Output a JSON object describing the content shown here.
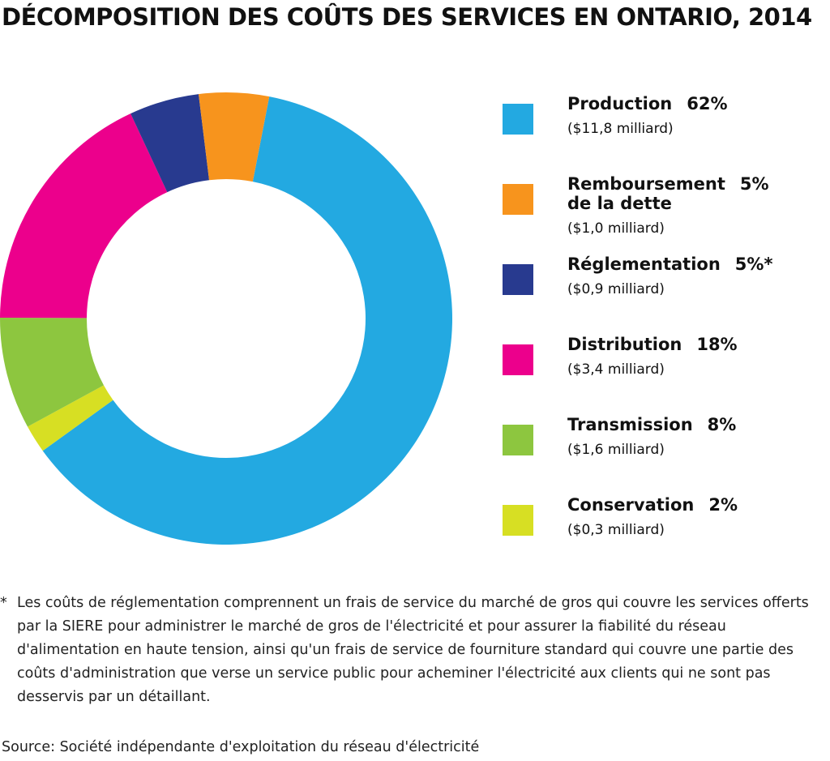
{
  "chart_data": {
    "type": "pie",
    "variant": "donut",
    "title": "DÉCOMPOSITION DES COÛTS DES SERVICES EN ONTARIO, 2014",
    "slices": [
      {
        "label": "Production",
        "line2": "",
        "pct_label": "62%",
        "value": 62,
        "amount": "($11,8 milliard)",
        "color": "#23a9e1"
      },
      {
        "label": "Remboursement",
        "line2": "de la dette",
        "pct_label": "5%",
        "value": 5,
        "amount": "($1,0 milliard)",
        "color": "#f7941d"
      },
      {
        "label": "Réglementation",
        "line2": "",
        "pct_label": "5%*",
        "value": 5,
        "amount": "($0,9 milliard)",
        "color": "#283a8f"
      },
      {
        "label": "Distribution",
        "line2": "",
        "pct_label": "18%",
        "value": 18,
        "amount": "($3,4 milliard)",
        "color": "#ec008c"
      },
      {
        "label": "Transmission",
        "line2": "",
        "pct_label": "8%",
        "value": 8,
        "amount": "($1,6 milliard)",
        "color": "#8dc63f"
      },
      {
        "label": "Conservation",
        "line2": "",
        "pct_label": "2%",
        "value": 2,
        "amount": "($0,3 milliard)",
        "color": "#d7df23"
      }
    ],
    "slice_draw_order": [
      0,
      5,
      4,
      3,
      2,
      1
    ],
    "legend_placement": "right"
  },
  "footnote": {
    "marker": "*",
    "text": "Les coûts de réglementation comprennent un frais de service du marché de gros qui couvre les services offerts par la SIERE pour administrer le marché de gros de l'électricité et pour assurer la fiabilité du réseau d'alimentation en haute tension, ainsi qu'un frais de service de fourniture standard qui couvre une partie des coûts d'administration que verse un service public pour acheminer l'électricité aux clients qui ne sont pas desservis par un détaillant."
  },
  "source": "Source: Société indépendante d'exploitation du réseau d'électricité"
}
